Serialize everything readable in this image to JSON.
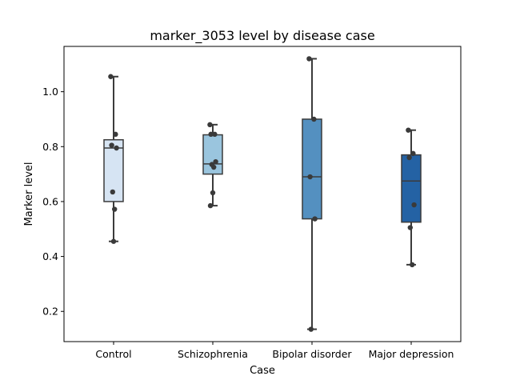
{
  "chart_data": {
    "type": "boxplot",
    "title": "marker_3053 level by disease case",
    "xlabel": "Case",
    "ylabel": "Marker level",
    "ylim": [
      0.09,
      1.165
    ],
    "yticks": [
      0.2,
      0.4,
      0.6,
      0.8,
      1.0
    ],
    "ytick_labels": [
      "0.2",
      "0.4",
      "0.6",
      "0.8",
      "1.0"
    ],
    "grid": false,
    "categories": [
      "Control",
      "Schizophrenia",
      "Bipolar disorder",
      "Major depression"
    ],
    "boxes": [
      {
        "category": "Control",
        "color": "#d6e4f3",
        "whisker_low": 0.455,
        "q1": 0.6,
        "median": 0.795,
        "q3": 0.825,
        "whisker_high": 1.055
      },
      {
        "category": "Schizophrenia",
        "color": "#9ac5de",
        "whisker_low": 0.585,
        "q1": 0.7,
        "median": 0.737,
        "q3": 0.843,
        "whisker_high": 0.88
      },
      {
        "category": "Bipolar disorder",
        "color": "#5490c0",
        "whisker_low": 0.135,
        "q1": 0.537,
        "median": 0.69,
        "q3": 0.9,
        "whisker_high": 1.12
      },
      {
        "category": "Major depression",
        "color": "#2462a4",
        "whisker_low": 0.37,
        "q1": 0.525,
        "median": 0.675,
        "q3": 0.77,
        "whisker_high": 0.86
      }
    ],
    "points": [
      {
        "category": "Control",
        "values": [
          1.055,
          0.845,
          0.805,
          0.795,
          0.635,
          0.572,
          0.455
        ]
      },
      {
        "category": "Schizophrenia",
        "values": [
          0.88,
          0.845,
          0.845,
          0.745,
          0.735,
          0.725,
          0.632,
          0.585
        ]
      },
      {
        "category": "Bipolar disorder",
        "values": [
          1.12,
          0.9,
          0.69,
          0.537,
          0.135
        ]
      },
      {
        "category": "Major depression",
        "values": [
          0.86,
          0.775,
          0.76,
          0.588,
          0.505,
          0.37
        ]
      }
    ],
    "colors": {
      "outline": "#3b3b3b",
      "point": "#3a3a3a"
    }
  }
}
